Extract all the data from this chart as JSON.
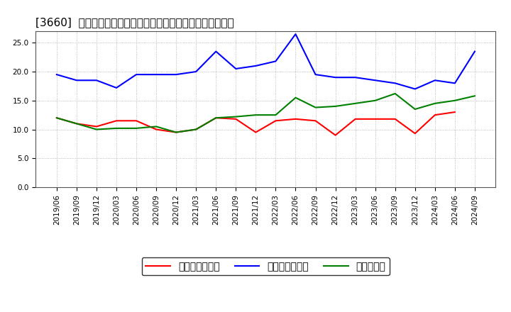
{
  "title": "[3660]  売上債権回転率、買入債務回転率、在庫回転率の推移",
  "x_labels": [
    "2019/06",
    "2019/09",
    "2019/12",
    "2020/03",
    "2020/06",
    "2020/09",
    "2020/12",
    "2021/03",
    "2021/06",
    "2021/09",
    "2021/12",
    "2022/03",
    "2022/06",
    "2022/09",
    "2022/12",
    "2023/03",
    "2023/06",
    "2023/09",
    "2023/12",
    "2024/03",
    "2024/06",
    "2024/09"
  ],
  "sales_receivables": [
    12.0,
    11.0,
    10.5,
    11.5,
    11.5,
    10.0,
    9.5,
    10.0,
    12.0,
    11.8,
    9.5,
    11.5,
    11.8,
    11.5,
    9.0,
    11.8,
    11.8,
    11.8,
    9.3,
    12.5,
    13.0,
    null
  ],
  "payables": [
    19.5,
    18.5,
    18.5,
    17.2,
    19.5,
    19.5,
    19.5,
    20.0,
    23.5,
    20.5,
    21.0,
    21.8,
    26.5,
    19.5,
    19.0,
    19.0,
    18.5,
    18.0,
    17.0,
    18.5,
    18.0,
    23.5
  ],
  "inventory": [
    12.0,
    11.0,
    10.0,
    10.2,
    10.2,
    10.5,
    9.5,
    10.0,
    12.0,
    12.2,
    12.5,
    12.5,
    15.5,
    13.8,
    14.0,
    14.5,
    15.0,
    16.2,
    13.5,
    14.5,
    15.0,
    15.8
  ],
  "line_colors": {
    "sales_receivables": "#ff0000",
    "payables": "#0000ff",
    "inventory": "#008000"
  },
  "legend_labels": {
    "sales_receivables": "売上債権回転率",
    "payables": "買入債務回転率",
    "inventory": "在庫回転率"
  },
  "ylim": [
    0,
    27
  ],
  "yticks": [
    0.0,
    5.0,
    10.0,
    15.0,
    20.0,
    25.0
  ],
  "ytick_labels": [
    "0.0",
    "5.0",
    "10.0",
    "15.0",
    "20.0",
    "25.0"
  ],
  "background_color": "#ffffff",
  "grid_color": "#aaaaaa",
  "title_fontsize": 11,
  "legend_fontsize": 9,
  "tick_fontsize": 7.5
}
